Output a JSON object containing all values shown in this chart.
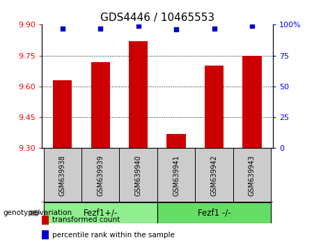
{
  "title": "GDS4446 / 10465553",
  "categories": [
    "GSM639938",
    "GSM639939",
    "GSM639940",
    "GSM639941",
    "GSM639942",
    "GSM639943"
  ],
  "bar_values": [
    9.63,
    9.72,
    9.82,
    9.37,
    9.7,
    9.75
  ],
  "percentile_values": [
    97,
    97,
    99,
    96,
    97,
    99
  ],
  "ylim": [
    9.3,
    9.9
  ],
  "yticks": [
    9.3,
    9.45,
    9.6,
    9.75,
    9.9
  ],
  "right_yticks": [
    0,
    25,
    50,
    75,
    100
  ],
  "right_ylim": [
    0,
    100
  ],
  "bar_color": "#cc0000",
  "dot_color": "#0000cc",
  "bar_width": 0.5,
  "groups": [
    {
      "label": "Fezf1+/-",
      "start": 0,
      "end": 3,
      "color": "#90EE90"
    },
    {
      "label": "Fezf1 -/-",
      "start": 3,
      "end": 6,
      "color": "#66dd66"
    }
  ],
  "group_label": "genotype/variation",
  "legend_items": [
    {
      "color": "#cc0000",
      "label": "transformed count"
    },
    {
      "color": "#0000cc",
      "label": "percentile rank within the sample"
    }
  ],
  "plot_bg": "#ffffff",
  "tick_area_bg": "#cccccc",
  "title_fontsize": 11,
  "tick_fontsize": 8,
  "label_fontsize": 8
}
